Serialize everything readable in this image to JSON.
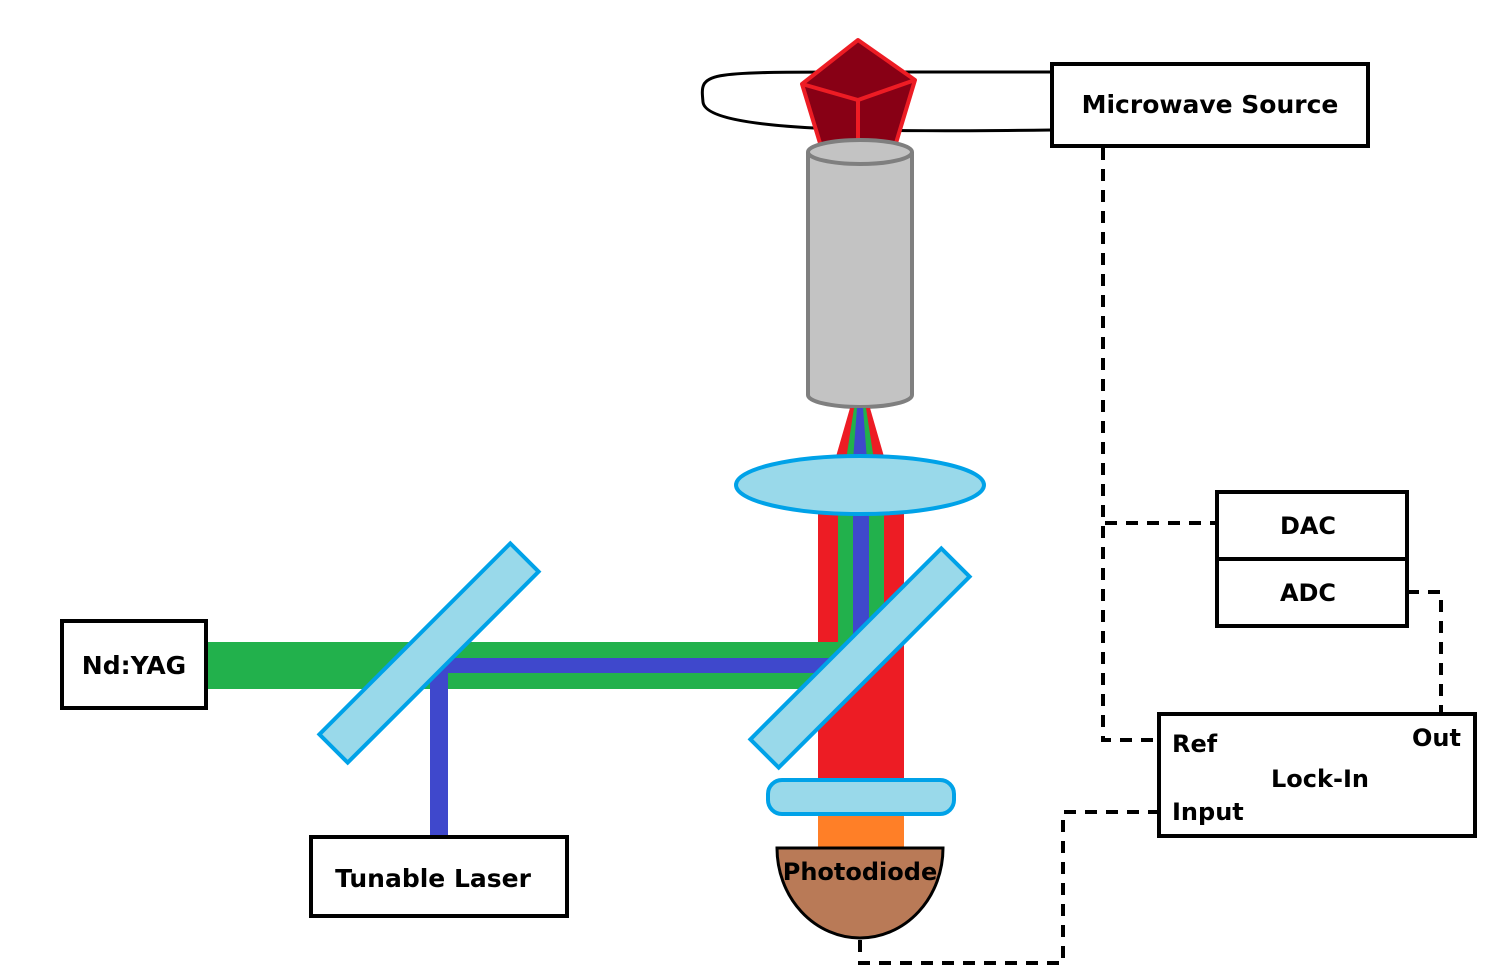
{
  "labels": {
    "microwave_source": "Microwave Source",
    "nd_yag": "Nd:YAG",
    "tunable_laser": "Tunable Laser",
    "photodiode": "Photodiode",
    "dac": "DAC",
    "adc": "ADC",
    "lock_in": "Lock-In",
    "ref": "Ref",
    "out": "Out",
    "input": "Input"
  },
  "colors": {
    "green_beam": "#22b14c",
    "blue_beam": "#3f48cc",
    "red_beam": "#ed1c24",
    "orange_beam": "#ff7f27",
    "optic_fill": "#99d9ea",
    "optic_stroke": "#00a2e8",
    "diamond_fill": "#880015",
    "diamond_edge": "#ed1c24",
    "objective_fill": "#c3c3c3",
    "objective_stroke": "#7f7f7f",
    "photodiode_fill": "#b97a57"
  }
}
